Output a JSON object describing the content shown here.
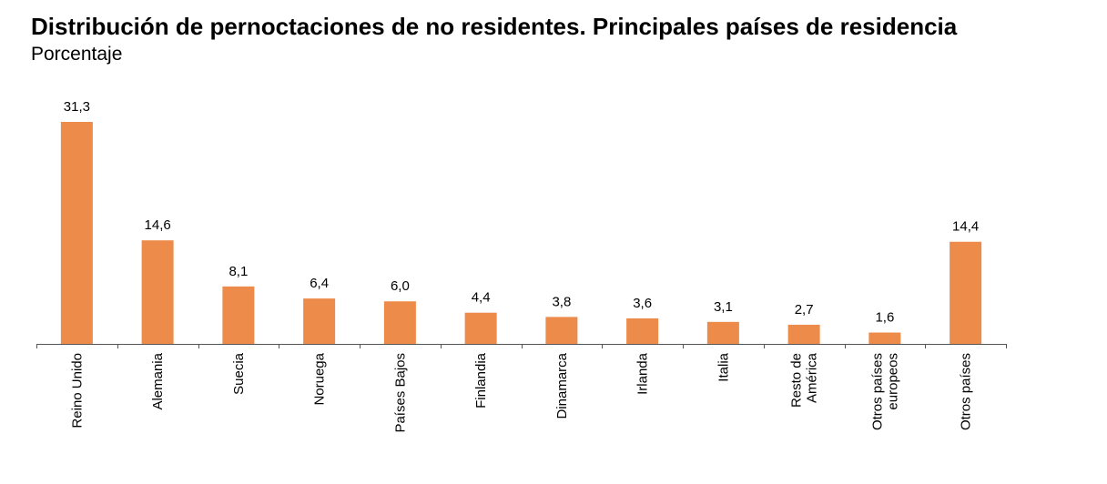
{
  "title": "Distribución de pernoctaciones de no residentes. Principales países de residencia",
  "subtitle": "Porcentaje",
  "colors": {
    "bar": "#ED8B4A",
    "axis": "#555555"
  },
  "chart_data": {
    "type": "bar",
    "categories": [
      [
        "Reino Unido"
      ],
      [
        "Alemania"
      ],
      [
        "Suecia"
      ],
      [
        "Noruega"
      ],
      [
        "Países Bajos"
      ],
      [
        "Finlandia"
      ],
      [
        "Dinamarca"
      ],
      [
        "Irlanda"
      ],
      [
        "Italia"
      ],
      [
        "Resto de",
        "América"
      ],
      [
        "Otros países",
        "europeos"
      ],
      [
        "Otros países"
      ]
    ],
    "values": [
      31.3,
      14.6,
      8.1,
      6.4,
      6.0,
      4.4,
      3.8,
      3.6,
      3.1,
      2.7,
      1.6,
      14.4
    ],
    "value_labels": [
      "31,3",
      "14,6",
      "8,1",
      "6,4",
      "6,0",
      "4,4",
      "3,8",
      "3,6",
      "3,1",
      "2,7",
      "1,6",
      "14,4"
    ],
    "grid": false,
    "legend": "none"
  }
}
